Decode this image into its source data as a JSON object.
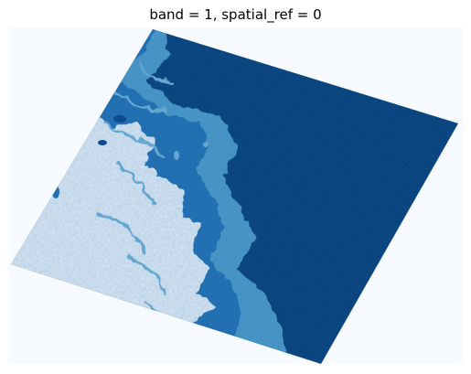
{
  "figure": {
    "title": "band = 1, spatial_ref = 0"
  },
  "image": {
    "colormap": "Blues",
    "colors": {
      "nodata_background": "#f7fbff",
      "ice_light": "#d6e6f4",
      "ice_pale": "#e6f0f9",
      "mid_blue": "#6aaed6",
      "mid_blue_2": "#4a98c9",
      "blue": "#2171b5",
      "deep_blue": "#0b4a8e",
      "darkest_blue": "#08306b",
      "ocean": "#08437f"
    },
    "axis_visible": false
  }
}
